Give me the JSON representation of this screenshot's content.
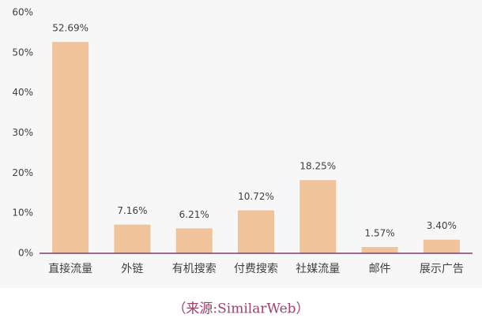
{
  "chart_data": {
    "type": "bar",
    "categories": [
      "直接流量",
      "外链",
      "有机搜索",
      "付费搜索",
      "社媒流量",
      "邮件",
      "展示广告"
    ],
    "values": [
      52.69,
      7.16,
      6.21,
      10.72,
      18.25,
      1.57,
      3.4
    ],
    "value_labels": [
      "52.69%",
      "7.16%",
      "6.21%",
      "10.72%",
      "18.25%",
      "1.57%",
      "3.40%"
    ],
    "color": "#f0c39b",
    "ylim": [
      0,
      60
    ],
    "yticks": [
      {
        "value": 0,
        "label": "0%"
      },
      {
        "value": 10,
        "label": "10%"
      },
      {
        "value": 20,
        "label": "20%"
      },
      {
        "value": 30,
        "label": "30%"
      },
      {
        "value": 40,
        "label": "40%"
      },
      {
        "value": 50,
        "label": "50%"
      },
      {
        "value": 60,
        "label": "60%"
      }
    ],
    "source": "（来源:SimilarWeb）"
  }
}
